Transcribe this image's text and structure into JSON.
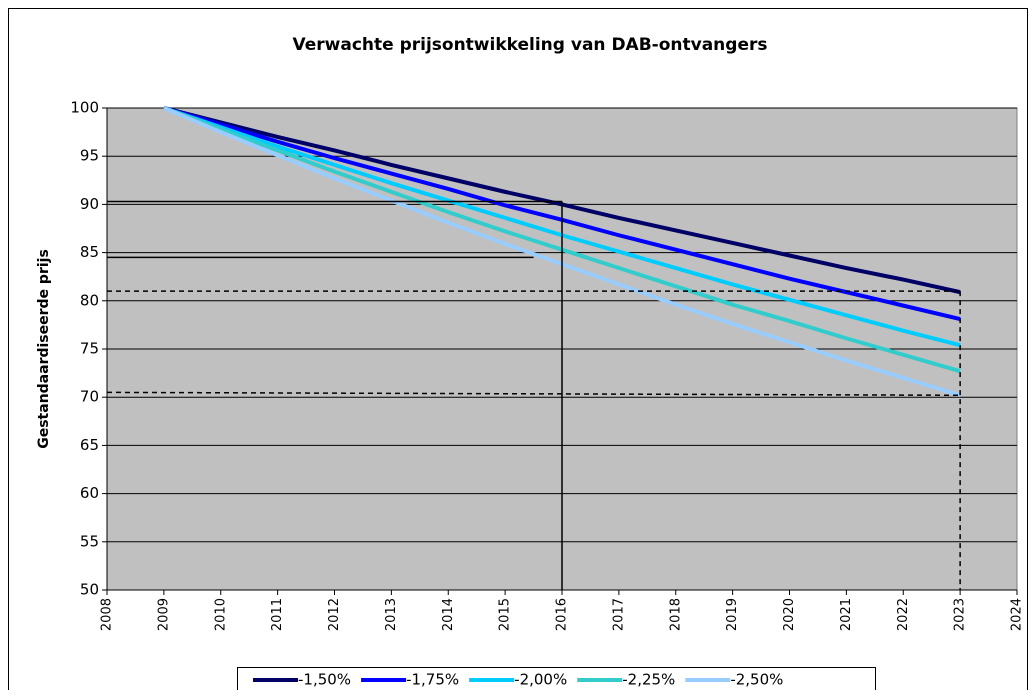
{
  "chart_data": {
    "type": "line",
    "title": "Verwachte prijsontwikkeling van DAB-ontvangers",
    "y_label": "Gestandaardiseerde prijs",
    "x": [
      2009,
      2010,
      2011,
      2012,
      2013,
      2014,
      2015,
      2016,
      2017,
      2018,
      2019,
      2020,
      2021,
      2022,
      2023
    ],
    "series": [
      {
        "name": "-1,50%",
        "color": "#000066",
        "values": [
          100,
          98.5,
          97.0,
          95.6,
          94.1,
          92.7,
          91.3,
          90.0,
          88.6,
          87.3,
          86.0,
          84.7,
          83.4,
          82.2,
          80.9
        ]
      },
      {
        "name": "-1,75%",
        "color": "#0000ff",
        "values": [
          100,
          98.3,
          96.5,
          94.8,
          93.2,
          91.6,
          89.9,
          88.4,
          86.8,
          85.3,
          83.8,
          82.3,
          80.9,
          79.5,
          78.1
        ]
      },
      {
        "name": "-2,00%",
        "color": "#00ccff",
        "values": [
          100,
          98.0,
          96.0,
          94.1,
          92.2,
          90.4,
          88.6,
          86.8,
          85.1,
          83.4,
          81.7,
          80.1,
          78.5,
          76.9,
          75.4
        ]
      },
      {
        "name": "-2,25%",
        "color": "#33cccc",
        "values": [
          100,
          97.8,
          95.6,
          93.4,
          91.3,
          89.2,
          87.2,
          85.3,
          83.4,
          81.5,
          79.6,
          77.9,
          76.1,
          74.4,
          72.7
        ]
      },
      {
        "name": "-2,50%",
        "color": "#99ccff",
        "values": [
          100,
          97.5,
          95.1,
          92.7,
          90.4,
          88.1,
          85.9,
          83.8,
          81.7,
          79.6,
          77.6,
          75.7,
          73.8,
          72.0,
          70.2
        ]
      }
    ],
    "reference_lines": [
      {
        "x": [
          2008,
          2016
        ],
        "y": [
          90.3,
          90.3
        ],
        "dashed": false
      },
      {
        "x": [
          2008,
          2015.5
        ],
        "y": [
          84.5,
          84.5
        ],
        "dashed": false
      },
      {
        "x": [
          2016,
          2016
        ],
        "y": [
          90.3,
          50
        ],
        "dashed": false
      },
      {
        "x": [
          2008,
          2023
        ],
        "y": [
          81,
          81
        ],
        "dashed": true
      },
      {
        "x": [
          2008,
          2023
        ],
        "y": [
          70.5,
          70.2
        ],
        "dashed": true
      },
      {
        "x": [
          2023,
          2023
        ],
        "y": [
          81,
          50
        ],
        "dashed": true
      }
    ],
    "xlim": [
      2008,
      2024
    ],
    "xticks": [
      2008,
      2009,
      2010,
      2011,
      2012,
      2013,
      2014,
      2015,
      2016,
      2017,
      2018,
      2019,
      2020,
      2021,
      2022,
      2023,
      2024
    ],
    "ylim": [
      50,
      100
    ],
    "yticks": [
      50,
      55,
      60,
      65,
      70,
      75,
      80,
      85,
      90,
      95,
      100
    ],
    "grid": true,
    "plot_background": "#c0c0c0",
    "legend": "bottom"
  }
}
